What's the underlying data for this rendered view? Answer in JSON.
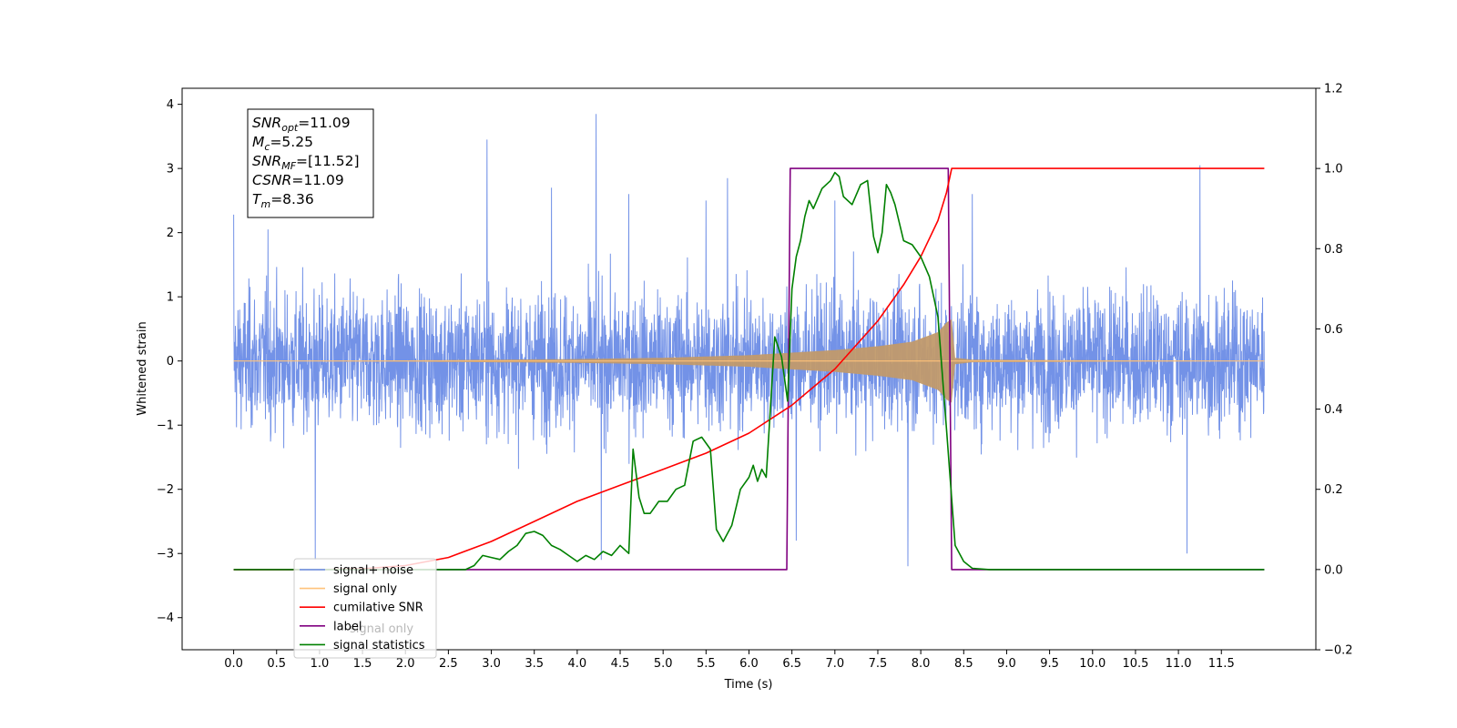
{
  "chart_data": {
    "type": "line",
    "xlabel": "Time (s)",
    "ylabel": "Whitened strain",
    "xlim": [
      -0.6,
      12.6
    ],
    "ylim": [
      -4.5,
      4.25
    ],
    "y2lim": [
      -0.2,
      1.2
    ],
    "grid": false,
    "x_ticks": [
      "0.0",
      "0.5",
      "1.0",
      "1.5",
      "2.0",
      "2.5",
      "3.0",
      "3.5",
      "4.0",
      "4.5",
      "5.0",
      "5.5",
      "6.0",
      "6.5",
      "7.0",
      "7.5",
      "8.0",
      "8.5",
      "9.0",
      "9.5",
      "10.0",
      "10.5",
      "11.0",
      "11.5"
    ],
    "y_ticks": [
      "4",
      "3",
      "2",
      "1",
      "0",
      "−1",
      "−2",
      "−3",
      "−4"
    ],
    "y2_ticks": [
      "1.2",
      "1.0",
      "0.8",
      "0.6",
      "0.4",
      "0.2",
      "0.0",
      "−0.2"
    ],
    "annotation": {
      "lines": [
        {
          "sym": "SNR",
          "sub": "opt",
          "val": "=11.09"
        },
        {
          "sym": "M",
          "sub": "c",
          "val": "=5.25"
        },
        {
          "sym": "SNR",
          "sub": "MF",
          "val": "=[11.52]"
        },
        {
          "sym": "CSNR",
          "sub": "",
          "val": "=11.09"
        },
        {
          "sym": "T",
          "sub": "m",
          "val": "=8.36"
        }
      ]
    },
    "legend": {
      "position": "lower-left",
      "entries": [
        "signal+ noise",
        "signal only",
        "cumilative SNR",
        "label",
        "signal statistics"
      ],
      "ghost_text": "signal only"
    },
    "series": [
      {
        "name": "signal+ noise",
        "axis": "left",
        "color": "#6b8ce6",
        "kind": "noise",
        "t_start": 0.0,
        "t_end": 12.0,
        "typical_range": [
          -2.0,
          2.1
        ],
        "spikes": [
          [
            0.0,
            2.28
          ],
          [
            0.4,
            2.05
          ],
          [
            0.95,
            -3.1
          ],
          [
            2.95,
            3.45
          ],
          [
            3.7,
            2.7
          ],
          [
            4.22,
            3.85
          ],
          [
            4.28,
            -3.1
          ],
          [
            4.6,
            2.6
          ],
          [
            5.5,
            2.5
          ],
          [
            5.75,
            2.85
          ],
          [
            6.55,
            -2.8
          ],
          [
            7.0,
            2.5
          ],
          [
            8.6,
            2.6
          ],
          [
            7.85,
            -3.2
          ],
          [
            11.25,
            3.05
          ],
          [
            11.1,
            -3.0
          ]
        ]
      },
      {
        "name": "signal only",
        "axis": "left",
        "color": "#c19a6b",
        "t_start": 0.0,
        "t_merge": 8.36,
        "t_end": 12.0,
        "envelope": [
          [
            0.0,
            0.0
          ],
          [
            2.0,
            0.01
          ],
          [
            4.0,
            0.03
          ],
          [
            5.0,
            0.05
          ],
          [
            6.0,
            0.09
          ],
          [
            6.5,
            0.13
          ],
          [
            7.0,
            0.17
          ],
          [
            7.5,
            0.23
          ],
          [
            7.9,
            0.3
          ],
          [
            8.2,
            0.45
          ],
          [
            8.3,
            0.6
          ],
          [
            8.36,
            0.65
          ],
          [
            8.4,
            0.05
          ],
          [
            8.6,
            0.02
          ],
          [
            12.0,
            0.0
          ]
        ]
      },
      {
        "name": "cumilative SNR",
        "axis": "right",
        "color": "#ff0000",
        "x": [
          0.0,
          1.0,
          1.5,
          2.0,
          2.5,
          3.0,
          3.5,
          4.0,
          4.5,
          5.0,
          5.5,
          6.0,
          6.5,
          7.0,
          7.5,
          7.8,
          8.0,
          8.2,
          8.3,
          8.36,
          8.4,
          12.0
        ],
        "y": [
          0.0,
          0.0,
          0.002,
          0.01,
          0.03,
          0.07,
          0.12,
          0.17,
          0.21,
          0.25,
          0.29,
          0.34,
          0.41,
          0.5,
          0.62,
          0.71,
          0.78,
          0.87,
          0.94,
          1.0,
          1.0,
          1.0
        ]
      },
      {
        "name": "label",
        "axis": "right",
        "color": "#800080",
        "x": [
          0.0,
          6.44,
          6.48,
          8.32,
          8.36,
          12.0
        ],
        "y": [
          0.0,
          0.0,
          1.0,
          1.0,
          0.0,
          0.0
        ]
      },
      {
        "name": "signal statistics",
        "axis": "right",
        "color": "#008000",
        "x": [
          0.0,
          2.7,
          2.8,
          2.9,
          3.0,
          3.1,
          3.2,
          3.3,
          3.4,
          3.5,
          3.6,
          3.7,
          3.8,
          3.9,
          4.0,
          4.1,
          4.2,
          4.3,
          4.4,
          4.5,
          4.6,
          4.65,
          4.72,
          4.78,
          4.85,
          4.95,
          5.05,
          5.15,
          5.25,
          5.35,
          5.45,
          5.55,
          5.62,
          5.7,
          5.8,
          5.9,
          6.0,
          6.05,
          6.1,
          6.15,
          6.2,
          6.3,
          6.38,
          6.45,
          6.5,
          6.55,
          6.6,
          6.65,
          6.7,
          6.75,
          6.85,
          6.95,
          7.0,
          7.05,
          7.1,
          7.2,
          7.3,
          7.38,
          7.45,
          7.5,
          7.55,
          7.6,
          7.65,
          7.7,
          7.8,
          7.9,
          8.0,
          8.1,
          8.2,
          8.3,
          8.4,
          8.5,
          8.6,
          8.8,
          9.0,
          12.0
        ],
        "y": [
          0.0,
          0.0,
          0.01,
          0.035,
          0.03,
          0.025,
          0.045,
          0.06,
          0.09,
          0.095,
          0.085,
          0.06,
          0.05,
          0.035,
          0.02,
          0.035,
          0.025,
          0.045,
          0.035,
          0.06,
          0.04,
          0.3,
          0.18,
          0.14,
          0.14,
          0.17,
          0.17,
          0.2,
          0.21,
          0.32,
          0.33,
          0.3,
          0.1,
          0.07,
          0.11,
          0.2,
          0.23,
          0.26,
          0.22,
          0.25,
          0.23,
          0.58,
          0.53,
          0.42,
          0.7,
          0.78,
          0.82,
          0.88,
          0.92,
          0.9,
          0.95,
          0.97,
          0.99,
          0.98,
          0.93,
          0.91,
          0.96,
          0.97,
          0.83,
          0.79,
          0.84,
          0.96,
          0.94,
          0.91,
          0.82,
          0.81,
          0.78,
          0.73,
          0.63,
          0.35,
          0.06,
          0.02,
          0.003,
          0.0,
          0.0,
          0.0
        ]
      }
    ]
  }
}
